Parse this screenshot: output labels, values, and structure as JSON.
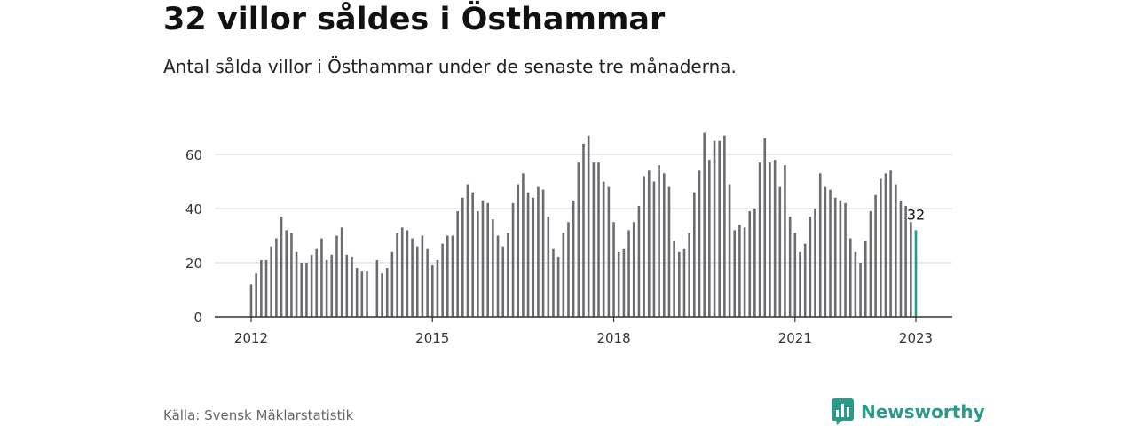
{
  "title": "32 villor såldes i Östhammar",
  "subtitle": "Antal sålda villor i Östhammar under de senaste tre månaderna.",
  "source": "Källa: Svensk Mäklarstatistik",
  "brand": {
    "name": "Newsworthy",
    "icon": "newsworthy-logo-icon",
    "color": "#2a9a8a"
  },
  "chart_data": {
    "type": "bar",
    "title": "32 villor såldes i Östhammar",
    "subtitle": "Antal sålda villor i Östhammar under de senaste tre månaderna.",
    "xlabel": "",
    "ylabel": "",
    "ylim": [
      0,
      70
    ],
    "xlim": [
      2011.8,
      2023.2
    ],
    "grid": true,
    "legend": "none",
    "y_ticks": [
      0,
      20,
      40,
      60
    ],
    "x_ticks": [
      2012,
      2015,
      2018,
      2021,
      2023
    ],
    "bar_color": "#6b6b72",
    "highlight_color": "#1f9c8c",
    "highlight_label": "32",
    "x": [
      2012.0,
      2012.083,
      2012.167,
      2012.25,
      2012.333,
      2012.417,
      2012.5,
      2012.583,
      2012.667,
      2012.75,
      2012.833,
      2012.917,
      2013.0,
      2013.083,
      2013.167,
      2013.25,
      2013.333,
      2013.417,
      2013.5,
      2013.583,
      2013.667,
      2013.75,
      2013.833,
      2013.917,
      2014.083,
      2014.167,
      2014.25,
      2014.333,
      2014.417,
      2014.5,
      2014.583,
      2014.667,
      2014.75,
      2014.833,
      2014.917,
      2015.0,
      2015.083,
      2015.167,
      2015.25,
      2015.333,
      2015.417,
      2015.5,
      2015.583,
      2015.667,
      2015.75,
      2015.833,
      2015.917,
      2016.0,
      2016.083,
      2016.167,
      2016.25,
      2016.333,
      2016.417,
      2016.5,
      2016.583,
      2016.667,
      2016.75,
      2016.833,
      2016.917,
      2017.0,
      2017.083,
      2017.167,
      2017.25,
      2017.333,
      2017.417,
      2017.5,
      2017.583,
      2017.667,
      2017.75,
      2017.833,
      2017.917,
      2018.0,
      2018.083,
      2018.167,
      2018.25,
      2018.333,
      2018.417,
      2018.5,
      2018.583,
      2018.667,
      2018.75,
      2018.833,
      2018.917,
      2019.0,
      2019.083,
      2019.167,
      2019.25,
      2019.333,
      2019.417,
      2019.5,
      2019.583,
      2019.667,
      2019.75,
      2019.833,
      2019.917,
      2020.0,
      2020.083,
      2020.167,
      2020.25,
      2020.333,
      2020.417,
      2020.5,
      2020.583,
      2020.667,
      2020.75,
      2020.833,
      2020.917,
      2021.0,
      2021.083,
      2021.167,
      2021.25,
      2021.333,
      2021.417,
      2021.5,
      2021.583,
      2021.667,
      2021.75,
      2021.833,
      2021.917,
      2022.0,
      2022.083,
      2022.167,
      2022.25,
      2022.333,
      2022.417,
      2022.5,
      2022.583,
      2022.667,
      2022.75,
      2022.833,
      2022.917,
      2023.0
    ],
    "values": [
      12,
      16,
      21,
      21,
      26,
      29,
      37,
      32,
      31,
      24,
      20,
      20,
      23,
      25,
      29,
      21,
      23,
      30,
      33,
      23,
      22,
      18,
      17,
      17,
      21,
      16,
      18,
      24,
      31,
      33,
      32,
      29,
      26,
      30,
      25,
      19,
      21,
      27,
      30,
      30,
      39,
      44,
      49,
      46,
      39,
      43,
      42,
      36,
      30,
      26,
      31,
      42,
      49,
      53,
      46,
      44,
      48,
      47,
      37,
      25,
      22,
      31,
      35,
      43,
      57,
      64,
      67,
      57,
      57,
      50,
      48,
      35,
      24,
      25,
      32,
      35,
      41,
      52,
      54,
      50,
      56,
      53,
      48,
      28,
      24,
      25,
      31,
      46,
      54,
      68,
      58,
      65,
      65,
      67,
      49,
      32,
      34,
      33,
      39,
      40,
      57,
      66,
      57,
      58,
      48,
      56,
      37,
      31,
      24,
      27,
      37,
      40,
      53,
      48,
      47,
      44,
      43,
      42,
      29,
      24,
      20,
      28,
      39,
      45,
      51,
      53,
      54,
      49,
      43,
      41,
      35,
      32
    ]
  }
}
